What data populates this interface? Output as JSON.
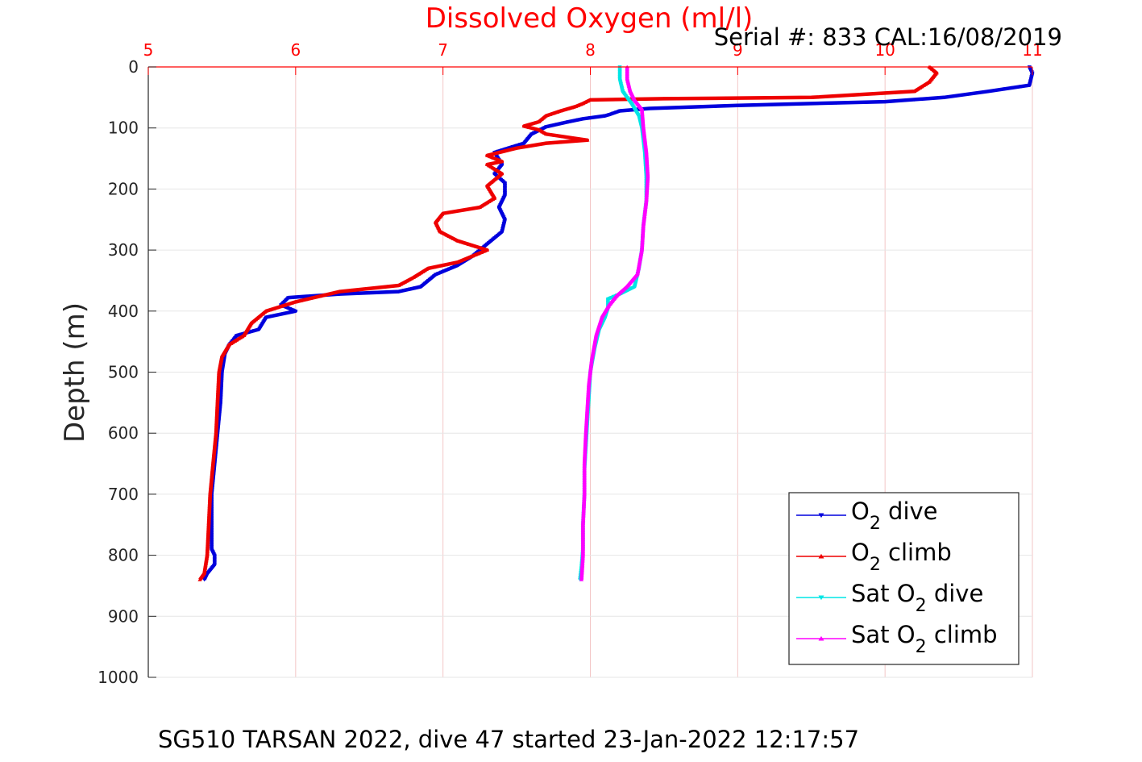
{
  "chart_data": {
    "type": "line",
    "title": "Dissolved Oxygen (ml/l)",
    "subtitle": "Serial #: 833  CAL:16/08/2019",
    "caption": "SG510 TARSAN 2022, dive 47 started 23-Jan-2022 12:17:57",
    "xlabel": "",
    "ylabel": "Depth (m)",
    "xlim": [
      5,
      11
    ],
    "ylim": [
      0,
      1000
    ],
    "y_reversed": true,
    "x_axis_position": "top",
    "x_ticks": [
      "5",
      "6",
      "7",
      "8",
      "9",
      "10",
      "11"
    ],
    "y_ticks": [
      "0",
      "100",
      "200",
      "300",
      "400",
      "500",
      "600",
      "700",
      "800",
      "900",
      "1000"
    ],
    "grid": true,
    "legend_position": "bottom-right",
    "colors": {
      "title": "#ff0000",
      "x_axis": "#ff0000",
      "grid": "#e6e6e6",
      "x_grid": "#f3c6c6"
    },
    "series": [
      {
        "name_main": "O",
        "name_sub": "2",
        "name_rest": " dive",
        "color": "#0000dd",
        "marker": "triangle-down",
        "points": [
          [
            10.98,
            0
          ],
          [
            11.0,
            10
          ],
          [
            10.98,
            30
          ],
          [
            10.7,
            40
          ],
          [
            10.4,
            50
          ],
          [
            10.0,
            57
          ],
          [
            9.0,
            63
          ],
          [
            8.4,
            68
          ],
          [
            8.2,
            72
          ],
          [
            8.13,
            78
          ],
          [
            8.1,
            80
          ],
          [
            7.95,
            85
          ],
          [
            7.85,
            90
          ],
          [
            7.7,
            98
          ],
          [
            7.6,
            110
          ],
          [
            7.55,
            125
          ],
          [
            7.35,
            140
          ],
          [
            7.4,
            160
          ],
          [
            7.35,
            175
          ],
          [
            7.42,
            190
          ],
          [
            7.42,
            210
          ],
          [
            7.38,
            230
          ],
          [
            7.42,
            250
          ],
          [
            7.4,
            270
          ],
          [
            7.3,
            290
          ],
          [
            7.2,
            310
          ],
          [
            7.1,
            325
          ],
          [
            6.95,
            340
          ],
          [
            6.85,
            360
          ],
          [
            6.7,
            368
          ],
          [
            6.3,
            372
          ],
          [
            5.95,
            378
          ],
          [
            5.9,
            390
          ],
          [
            6.0,
            400
          ],
          [
            5.8,
            410
          ],
          [
            5.75,
            430
          ],
          [
            5.6,
            440
          ],
          [
            5.55,
            455
          ],
          [
            5.52,
            470
          ],
          [
            5.5,
            500
          ],
          [
            5.49,
            550
          ],
          [
            5.47,
            600
          ],
          [
            5.45,
            650
          ],
          [
            5.43,
            700
          ],
          [
            5.43,
            750
          ],
          [
            5.43,
            790
          ],
          [
            5.45,
            800
          ],
          [
            5.45,
            815
          ],
          [
            5.4,
            830
          ],
          [
            5.38,
            840
          ]
        ]
      },
      {
        "name_main": "O",
        "name_sub": "2",
        "name_rest": " climb",
        "color": "#ee0000",
        "marker": "triangle-up",
        "points": [
          [
            10.3,
            0
          ],
          [
            10.35,
            10
          ],
          [
            10.3,
            25
          ],
          [
            10.2,
            40
          ],
          [
            9.5,
            50
          ],
          [
            8.5,
            52
          ],
          [
            8.0,
            54
          ],
          [
            7.95,
            60
          ],
          [
            7.9,
            65
          ],
          [
            7.8,
            72
          ],
          [
            7.7,
            80
          ],
          [
            7.65,
            90
          ],
          [
            7.55,
            97
          ],
          [
            7.65,
            103
          ],
          [
            7.7,
            110
          ],
          [
            7.98,
            120
          ],
          [
            7.7,
            125
          ],
          [
            7.5,
            133
          ],
          [
            7.3,
            145
          ],
          [
            7.4,
            155
          ],
          [
            7.3,
            160
          ],
          [
            7.4,
            175
          ],
          [
            7.3,
            195
          ],
          [
            7.35,
            215
          ],
          [
            7.25,
            230
          ],
          [
            7.0,
            240
          ],
          [
            6.95,
            255
          ],
          [
            6.98,
            270
          ],
          [
            7.1,
            285
          ],
          [
            7.3,
            300
          ],
          [
            7.1,
            320
          ],
          [
            6.9,
            330
          ],
          [
            6.8,
            345
          ],
          [
            6.7,
            358
          ],
          [
            6.3,
            368
          ],
          [
            6.0,
            385
          ],
          [
            5.8,
            400
          ],
          [
            5.7,
            420
          ],
          [
            5.65,
            440
          ],
          [
            5.55,
            455
          ],
          [
            5.5,
            475
          ],
          [
            5.48,
            500
          ],
          [
            5.47,
            550
          ],
          [
            5.46,
            600
          ],
          [
            5.44,
            650
          ],
          [
            5.42,
            700
          ],
          [
            5.41,
            750
          ],
          [
            5.4,
            800
          ],
          [
            5.38,
            830
          ],
          [
            5.35,
            840
          ]
        ]
      },
      {
        "name_main": "Sat O",
        "name_sub": "2",
        "name_rest": " dive",
        "color": "#00e5e5",
        "marker": "triangle-down",
        "points": [
          [
            8.2,
            0
          ],
          [
            8.2,
            20
          ],
          [
            8.22,
            40
          ],
          [
            8.28,
            60
          ],
          [
            8.33,
            80
          ],
          [
            8.35,
            100
          ],
          [
            8.37,
            140
          ],
          [
            8.38,
            180
          ],
          [
            8.38,
            220
          ],
          [
            8.36,
            260
          ],
          [
            8.35,
            300
          ],
          [
            8.33,
            330
          ],
          [
            8.3,
            360
          ],
          [
            8.2,
            372
          ],
          [
            8.12,
            380
          ],
          [
            8.12,
            395
          ],
          [
            8.1,
            410
          ],
          [
            8.06,
            430
          ],
          [
            8.03,
            460
          ],
          [
            8.0,
            500
          ],
          [
            7.99,
            540
          ],
          [
            7.98,
            580
          ],
          [
            7.97,
            620
          ],
          [
            7.96,
            660
          ],
          [
            7.96,
            700
          ],
          [
            7.95,
            750
          ],
          [
            7.95,
            790
          ],
          [
            7.94,
            820
          ],
          [
            7.93,
            840
          ]
        ]
      },
      {
        "name_main": "Sat O",
        "name_sub": "2",
        "name_rest": " climb",
        "color": "#ff00ff",
        "marker": "triangle-up",
        "points": [
          [
            8.25,
            0
          ],
          [
            8.25,
            20
          ],
          [
            8.27,
            40
          ],
          [
            8.3,
            55
          ],
          [
            8.35,
            70
          ],
          [
            8.36,
            100
          ],
          [
            8.38,
            140
          ],
          [
            8.39,
            180
          ],
          [
            8.38,
            220
          ],
          [
            8.36,
            260
          ],
          [
            8.35,
            300
          ],
          [
            8.32,
            340
          ],
          [
            8.25,
            360
          ],
          [
            8.18,
            375
          ],
          [
            8.13,
            390
          ],
          [
            8.08,
            410
          ],
          [
            8.04,
            440
          ],
          [
            8.01,
            480
          ],
          [
            7.99,
            520
          ],
          [
            7.98,
            560
          ],
          [
            7.97,
            600
          ],
          [
            7.96,
            650
          ],
          [
            7.96,
            700
          ],
          [
            7.95,
            750
          ],
          [
            7.95,
            800
          ],
          [
            7.94,
            840
          ]
        ]
      }
    ]
  }
}
